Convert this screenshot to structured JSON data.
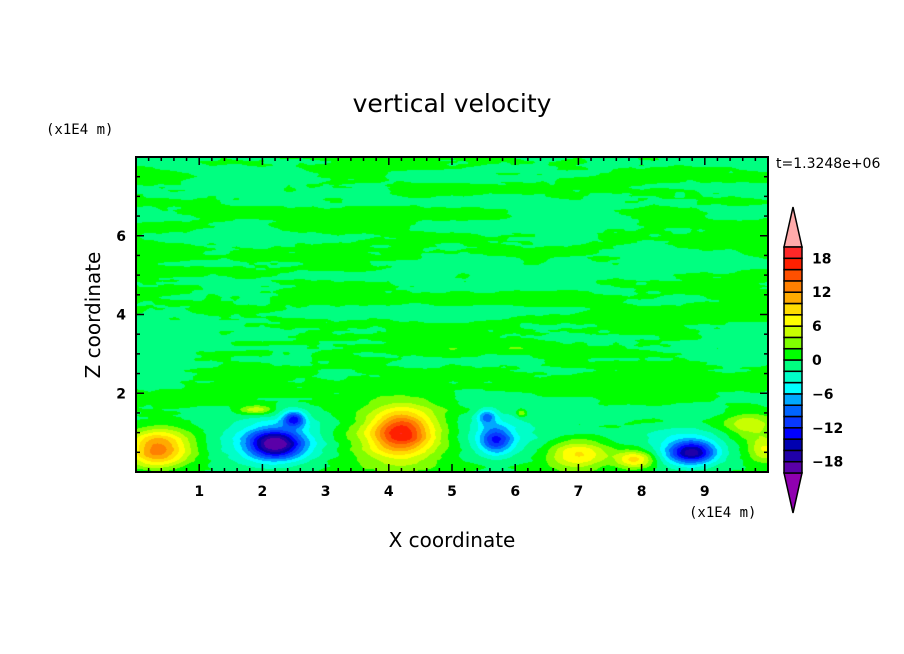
{
  "chart_data": {
    "type": "heatmap",
    "subtype": "filled-contour",
    "title": "vertical velocity",
    "xlabel": "X coordinate",
    "ylabel": "Z coordinate",
    "x_unit": "(x1E4 m)",
    "y_unit": "(x1E4 m)",
    "time_label": "t=1.3248e+06",
    "xlim": [
      0,
      10
    ],
    "ylim": [
      0,
      8
    ],
    "x_ticks": [
      "1",
      "2",
      "3",
      "4",
      "5",
      "6",
      "7",
      "8",
      "9"
    ],
    "x_tick_values": [
      1,
      2,
      3,
      4,
      5,
      6,
      7,
      8,
      9
    ],
    "y_ticks": [
      "2",
      "4",
      "6"
    ],
    "y_tick_values": [
      2,
      4,
      6
    ],
    "colorbar": {
      "levels_min": -20,
      "levels_max": 20,
      "level_step": 2,
      "tick_labels": [
        "18",
        "12",
        "6",
        "0",
        "−6",
        "−12",
        "−18"
      ],
      "tick_values": [
        18,
        12,
        6,
        0,
        -6,
        -12,
        -18
      ],
      "colors": [
        "#5a00a8",
        "#2000a8",
        "#0000b0",
        "#0000ff",
        "#0838ff",
        "#0064ff",
        "#00a8ff",
        "#00ffff",
        "#00ffc8",
        "#00ff80",
        "#00ff00",
        "#80ff00",
        "#c8ff00",
        "#ffff00",
        "#ffdc00",
        "#ffaa00",
        "#ff8000",
        "#ff5000",
        "#ff2000",
        "#ff2828"
      ],
      "over_color": "#ffaaaa",
      "under_color": "#9000b0"
    },
    "features": [
      {
        "x": 0.4,
        "z": 0.6,
        "value": 11
      },
      {
        "x": 2.2,
        "z": 0.7,
        "value": -15
      },
      {
        "x": 2.5,
        "z": 1.4,
        "value": -11
      },
      {
        "x": 1.9,
        "z": 1.6,
        "value": 5
      },
      {
        "x": 4.2,
        "z": 1.0,
        "value": 16
      },
      {
        "x": 5.7,
        "z": 0.8,
        "value": -10
      },
      {
        "x": 6.1,
        "z": 1.5,
        "value": 4
      },
      {
        "x": 7.0,
        "z": 0.5,
        "value": 9
      },
      {
        "x": 7.9,
        "z": 0.35,
        "value": 10
      },
      {
        "x": 8.8,
        "z": 0.5,
        "value": -13
      },
      {
        "x": 9.7,
        "z": 1.2,
        "value": 5
      }
    ],
    "background": "alternating horizontal bands between -2 and 2 above z=2"
  }
}
